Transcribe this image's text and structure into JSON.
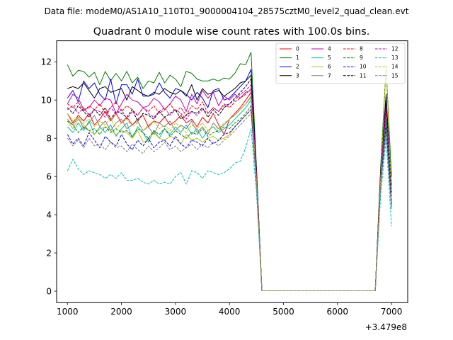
{
  "figure": {
    "suptitle": "Data file: modeM0/AS1A10_110T01_9000004104_28575cztM0_level2_quad_clean.evt"
  },
  "chart_data": {
    "type": "line",
    "title": "Quadrant 0 module wise count rates with 100.0s bins.",
    "xlabel": "",
    "ylabel": "",
    "x_offset_label": "+3.479e8",
    "xlim": [
      800,
      7300
    ],
    "ylim": [
      -0.6,
      13.1
    ],
    "xticks": [
      1000,
      2000,
      3000,
      4000,
      5000,
      6000,
      7000
    ],
    "xtick_labels": [
      "1000",
      "2000",
      "3000",
      "4000",
      "5000",
      "6000",
      "7000"
    ],
    "yticks": [
      0,
      2,
      4,
      6,
      8,
      10,
      12
    ],
    "ytick_labels": [
      "0",
      "2",
      "4",
      "6",
      "8",
      "10",
      "12"
    ],
    "grid": false,
    "legend_position": "top-right",
    "legend_columns": 4,
    "x": [
      1000,
      1100,
      1200,
      1300,
      1400,
      1500,
      1600,
      1700,
      1800,
      1900,
      2000,
      2100,
      2200,
      2300,
      2400,
      2500,
      2600,
      2700,
      2800,
      2900,
      3000,
      3100,
      3200,
      3300,
      3400,
      3500,
      3600,
      3700,
      3800,
      3900,
      4000,
      4100,
      4200,
      4300,
      4400,
      4500,
      4600,
      4700,
      4800,
      4900,
      5000,
      5100,
      5200,
      5300,
      5400,
      5500,
      5600,
      5700,
      5800,
      5900,
      6000,
      6100,
      6200,
      6300,
      6400,
      6500,
      6600,
      6700,
      6800,
      6900,
      7000
    ],
    "series": [
      {
        "name": "0",
        "color": "#ff0000",
        "dash": "solid",
        "values": [
          9.3,
          8.8,
          9.2,
          8.9,
          9.3,
          8.7,
          9.0,
          9.4,
          8.9,
          9.3,
          8.8,
          9.1,
          8.7,
          9.0,
          9.2,
          8.6,
          8.9,
          8.8,
          9.1,
          8.7,
          8.9,
          9.2,
          8.8,
          9.0,
          8.6,
          9.1,
          8.8,
          9.3,
          8.7,
          8.2,
          9.0,
          9.3,
          9.6,
          10.0,
          10.4,
          6.0,
          0.02,
          0.02,
          0.02,
          0.02,
          0.02,
          0.02,
          0.02,
          0.02,
          0.02,
          0.02,
          0.02,
          0.02,
          0.02,
          0.02,
          0.02,
          0.02,
          0.02,
          0.02,
          0.02,
          0.02,
          0.02,
          0.02,
          6.0,
          9.5,
          5.5
        ]
      },
      {
        "name": "1",
        "color": "#008000",
        "dash": "solid",
        "values": [
          11.85,
          11.25,
          11.55,
          11.5,
          11.2,
          11.45,
          10.8,
          11.5,
          11.0,
          11.4,
          11.0,
          11.5,
          10.9,
          11.2,
          10.6,
          11.0,
          10.9,
          11.45,
          10.9,
          11.3,
          11.1,
          10.7,
          11.5,
          11.4,
          11.1,
          11.0,
          11.0,
          11.1,
          11.0,
          11.15,
          11.1,
          11.4,
          11.9,
          11.85,
          12.5,
          6.5,
          0.02,
          0.02,
          0.02,
          0.02,
          0.02,
          0.02,
          0.02,
          0.02,
          0.02,
          0.02,
          0.02,
          0.02,
          0.02,
          0.02,
          0.02,
          0.02,
          0.02,
          0.02,
          0.02,
          0.02,
          0.02,
          0.02,
          6.5,
          11.7,
          6.0
        ]
      },
      {
        "name": "2",
        "color": "#0000ff",
        "dash": "solid",
        "values": [
          10.1,
          10.5,
          9.9,
          11.0,
          10.6,
          10.9,
          10.3,
          10.0,
          11.1,
          9.8,
          10.8,
          10.8,
          10.3,
          11.1,
          10.2,
          10.2,
          10.3,
          10.9,
          10.4,
          10.1,
          10.6,
          10.5,
          10.3,
          10.0,
          10.4,
          10.1,
          9.6,
          10.5,
          10.6,
          10.0,
          10.1,
          10.4,
          10.7,
          11.0,
          11.6,
          6.3,
          0.02,
          0.02,
          0.02,
          0.02,
          0.02,
          0.02,
          0.02,
          0.02,
          0.02,
          0.02,
          0.02,
          0.02,
          0.02,
          0.02,
          0.02,
          0.02,
          0.02,
          0.02,
          0.02,
          0.02,
          0.02,
          0.02,
          6.2,
          10.0,
          5.5
        ]
      },
      {
        "name": "3",
        "color": "#000000",
        "dash": "solid",
        "values": [
          10.6,
          10.7,
          10.6,
          10.9,
          10.5,
          10.1,
          10.6,
          10.7,
          10.4,
          10.5,
          10.6,
          10.0,
          10.7,
          10.5,
          10.3,
          10.2,
          10.4,
          10.3,
          10.6,
          10.4,
          10.3,
          10.5,
          10.2,
          10.8,
          10.0,
          10.6,
          10.3,
          10.4,
          10.5,
          10.2,
          10.4,
          10.6,
          10.9,
          11.0,
          11.3,
          6.4,
          0.02,
          0.02,
          0.02,
          0.02,
          0.02,
          0.02,
          0.02,
          0.02,
          0.02,
          0.02,
          0.02,
          0.02,
          0.02,
          0.02,
          0.02,
          0.02,
          0.02,
          0.02,
          0.02,
          0.02,
          0.02,
          0.02,
          6.3,
          10.3,
          5.0
        ]
      },
      {
        "name": "4",
        "color": "#bf00bf",
        "dash": "solid",
        "values": [
          9.8,
          10.3,
          10.1,
          9.5,
          9.6,
          10.0,
          9.7,
          10.1,
          10.0,
          9.3,
          9.8,
          10.3,
          10.0,
          9.9,
          9.6,
          9.7,
          10.1,
          9.9,
          9.5,
          9.8,
          10.2,
          10.0,
          9.4,
          10.3,
          9.8,
          10.5,
          10.1,
          10.4,
          9.7,
          10.2,
          10.0,
          10.3,
          10.1,
          10.4,
          10.5,
          6.1,
          0.02,
          0.02,
          0.02,
          0.02,
          0.02,
          0.02,
          0.02,
          0.02,
          0.02,
          0.02,
          0.02,
          0.02,
          0.02,
          0.02,
          0.02,
          0.02,
          0.02,
          0.02,
          0.02,
          0.02,
          0.02,
          0.02,
          6.0,
          9.4,
          5.2
        ]
      },
      {
        "name": "5",
        "color": "#00bfbf",
        "dash": "solid",
        "values": [
          8.6,
          8.3,
          8.8,
          8.4,
          8.9,
          8.2,
          8.6,
          8.3,
          8.7,
          8.1,
          8.5,
          8.8,
          8.0,
          8.6,
          8.3,
          7.8,
          8.4,
          8.0,
          8.5,
          8.2,
          8.6,
          8.3,
          8.7,
          8.2,
          8.5,
          8.0,
          8.4,
          8.6,
          8.3,
          8.5,
          8.7,
          9.0,
          9.3,
          9.6,
          10.0,
          5.9,
          0.02,
          0.02,
          0.02,
          0.02,
          0.02,
          0.02,
          0.02,
          0.02,
          0.02,
          0.02,
          0.02,
          0.02,
          0.02,
          0.02,
          0.02,
          0.02,
          0.02,
          0.02,
          0.02,
          0.02,
          0.02,
          0.02,
          5.8,
          9.0,
          4.6
        ]
      },
      {
        "name": "6",
        "color": "#bfbf00",
        "dash": "solid",
        "values": [
          8.9,
          8.5,
          9.0,
          8.7,
          8.4,
          8.2,
          8.5,
          8.6,
          8.4,
          8.2,
          8.4,
          8.3,
          8.0,
          8.4,
          7.8,
          7.9,
          8.3,
          8.0,
          7.9,
          8.1,
          8.0,
          7.7,
          8.2,
          7.9,
          8.0,
          7.8,
          8.0,
          8.1,
          7.9,
          8.0,
          8.2,
          8.6,
          8.9,
          9.2,
          9.5,
          5.7,
          0.02,
          0.02,
          0.02,
          0.02,
          0.02,
          0.02,
          0.02,
          0.02,
          0.02,
          0.02,
          0.02,
          0.02,
          0.02,
          0.02,
          0.02,
          0.02,
          0.02,
          0.02,
          0.02,
          0.02,
          0.02,
          0.02,
          5.6,
          8.5,
          4.4
        ]
      },
      {
        "name": "7",
        "color": "#808080",
        "dash": "solid",
        "values": [
          9.0,
          8.7,
          9.1,
          8.5,
          8.8,
          9.2,
          8.6,
          8.9,
          8.4,
          8.8,
          9.0,
          8.5,
          8.7,
          8.9,
          8.4,
          8.6,
          8.2,
          8.8,
          8.6,
          8.9,
          8.4,
          8.7,
          8.5,
          8.9,
          8.3,
          8.6,
          8.2,
          8.8,
          8.5,
          8.7,
          9.0,
          9.2,
          9.5,
          9.8,
          10.2,
          5.8,
          0.02,
          0.02,
          0.02,
          0.02,
          0.02,
          0.02,
          0.02,
          0.02,
          0.02,
          0.02,
          0.02,
          0.02,
          0.02,
          0.02,
          0.02,
          0.02,
          0.02,
          0.02,
          0.02,
          0.02,
          0.02,
          0.02,
          5.7,
          8.8,
          4.5
        ]
      },
      {
        "name": "8",
        "color": "#ff0000",
        "dash": "dashed",
        "values": [
          9.8,
          9.6,
          9.9,
          9.4,
          9.7,
          9.5,
          9.8,
          9.3,
          9.6,
          9.9,
          9.4,
          9.7,
          9.5,
          9.2,
          9.6,
          9.4,
          9.7,
          9.3,
          9.5,
          9.8,
          9.4,
          9.6,
          9.2,
          9.7,
          9.5,
          9.9,
          9.3,
          9.6,
          9.4,
          9.8,
          9.6,
          9.9,
          10.1,
          10.3,
          10.6,
          6.2,
          0.02,
          0.02,
          0.02,
          0.02,
          0.02,
          0.02,
          0.02,
          0.02,
          0.02,
          0.02,
          0.02,
          0.02,
          0.02,
          0.02,
          0.02,
          0.02,
          0.02,
          0.02,
          0.02,
          0.02,
          0.02,
          0.02,
          6.1,
          9.6,
          5.0
        ]
      },
      {
        "name": "9",
        "color": "#008000",
        "dash": "dashed",
        "values": [
          8.9,
          8.7,
          8.3,
          8.6,
          8.4,
          8.5,
          8.2,
          8.6,
          8.3,
          8.5,
          8.3,
          8.4,
          8.1,
          8.5,
          8.3,
          8.0,
          8.4,
          8.2,
          8.5,
          8.1,
          8.4,
          8.2,
          8.0,
          8.3,
          8.2,
          8.5,
          8.1,
          8.3,
          8.4,
          8.6,
          8.5,
          8.8,
          9.0,
          9.3,
          9.7,
          5.8,
          0.02,
          0.02,
          0.02,
          0.02,
          0.02,
          0.02,
          0.02,
          0.02,
          0.02,
          0.02,
          0.02,
          0.02,
          0.02,
          0.02,
          0.02,
          0.02,
          0.02,
          0.02,
          0.02,
          0.02,
          0.02,
          0.02,
          5.8,
          8.9,
          4.6
        ]
      },
      {
        "name": "10",
        "color": "#0000ff",
        "dash": "dashed",
        "values": [
          8.2,
          7.7,
          8.0,
          7.6,
          8.3,
          7.9,
          7.5,
          8.1,
          7.8,
          7.6,
          8.2,
          7.7,
          7.4,
          7.9,
          7.6,
          8.0,
          7.5,
          7.8,
          7.9,
          7.6,
          8.1,
          7.7,
          7.5,
          7.9,
          7.8,
          7.6,
          8.0,
          7.7,
          7.9,
          8.2,
          8.3,
          8.6,
          8.9,
          9.2,
          9.5,
          5.7,
          0.02,
          0.02,
          0.02,
          0.02,
          0.02,
          0.02,
          0.02,
          0.02,
          0.02,
          0.02,
          0.02,
          0.02,
          0.02,
          0.02,
          0.02,
          0.02,
          0.02,
          0.02,
          0.02,
          0.02,
          0.02,
          0.02,
          5.6,
          8.6,
          4.4
        ]
      },
      {
        "name": "11",
        "color": "#000000",
        "dash": "dashed",
        "values": [
          9.6,
          9.3,
          9.7,
          9.4,
          9.1,
          9.5,
          9.2,
          9.6,
          9.0,
          9.4,
          9.3,
          9.1,
          9.5,
          8.9,
          9.3,
          9.2,
          9.0,
          9.4,
          9.1,
          9.3,
          9.5,
          9.0,
          9.2,
          9.4,
          9.3,
          9.6,
          9.1,
          9.5,
          9.2,
          9.6,
          9.8,
          10.1,
          10.4,
          10.7,
          11.1,
          6.4,
          0.02,
          0.02,
          0.02,
          0.02,
          0.02,
          0.02,
          0.02,
          0.02,
          0.02,
          0.02,
          0.02,
          0.02,
          0.02,
          0.02,
          0.02,
          0.02,
          0.02,
          0.02,
          0.02,
          0.02,
          0.02,
          0.02,
          6.3,
          9.8,
          5.1
        ]
      },
      {
        "name": "12",
        "color": "#bf00bf",
        "dash": "dashed",
        "values": [
          9.5,
          9.7,
          9.3,
          9.6,
          9.2,
          9.5,
          9.4,
          9.1,
          9.6,
          9.3,
          9.5,
          9.0,
          9.4,
          9.2,
          9.6,
          9.3,
          9.1,
          9.4,
          9.6,
          9.2,
          9.5,
          9.3,
          9.0,
          9.4,
          9.2,
          9.5,
          9.3,
          9.6,
          9.4,
          9.7,
          9.8,
          10.0,
          10.3,
          10.5,
          10.8,
          6.2,
          0.02,
          0.02,
          0.02,
          0.02,
          0.02,
          0.02,
          0.02,
          0.02,
          0.02,
          0.02,
          0.02,
          0.02,
          0.02,
          0.02,
          0.02,
          0.02,
          0.02,
          0.02,
          0.02,
          0.02,
          0.02,
          0.02,
          6.1,
          9.7,
          5.2
        ]
      },
      {
        "name": "13",
        "color": "#00bfbf",
        "dash": "dashed",
        "values": [
          6.3,
          6.9,
          6.4,
          6.1,
          6.3,
          6.2,
          6.1,
          5.9,
          6.1,
          5.9,
          6.2,
          5.8,
          5.8,
          5.9,
          5.7,
          5.6,
          5.8,
          5.6,
          5.7,
          5.6,
          6.0,
          6.2,
          5.6,
          6.3,
          6.2,
          5.9,
          6.3,
          6.2,
          6.1,
          6.2,
          6.4,
          6.7,
          6.8,
          7.5,
          8.5,
          5.2,
          0.02,
          0.02,
          0.02,
          0.02,
          0.02,
          0.02,
          0.02,
          0.02,
          0.02,
          0.02,
          0.02,
          0.02,
          0.02,
          0.02,
          0.02,
          0.02,
          0.02,
          0.02,
          0.02,
          0.02,
          0.02,
          0.02,
          5.0,
          8.0,
          3.4
        ]
      },
      {
        "name": "14",
        "color": "#bfbf00",
        "dash": "dashed",
        "values": [
          9.3,
          8.9,
          9.1,
          8.8,
          9.0,
          8.6,
          8.9,
          8.7,
          9.1,
          8.5,
          8.8,
          9.0,
          8.6,
          8.8,
          8.4,
          8.7,
          8.9,
          8.5,
          8.7,
          8.4,
          8.8,
          8.6,
          8.3,
          8.7,
          8.5,
          8.8,
          8.4,
          8.6,
          8.5,
          8.8,
          9.0,
          9.2,
          9.5,
          9.8,
          10.1,
          5.9,
          0.02,
          0.02,
          0.02,
          0.02,
          0.02,
          0.02,
          0.02,
          0.02,
          0.02,
          0.02,
          0.02,
          0.02,
          0.02,
          0.02,
          0.02,
          0.02,
          0.02,
          0.02,
          0.02,
          0.02,
          0.02,
          0.02,
          5.9,
          11.8,
          5.0
        ]
      },
      {
        "name": "15",
        "color": "#808080",
        "dash": "dashed",
        "values": [
          8.0,
          7.6,
          7.9,
          7.5,
          8.0,
          7.6,
          7.7,
          7.4,
          7.8,
          7.5,
          7.6,
          7.3,
          7.7,
          7.4,
          7.2,
          7.6,
          7.3,
          7.5,
          7.8,
          7.4,
          7.6,
          7.3,
          7.5,
          7.7,
          7.4,
          7.7,
          7.5,
          7.8,
          7.6,
          7.9,
          8.1,
          8.4,
          8.7,
          9.0,
          9.3,
          5.6,
          0.02,
          0.02,
          0.02,
          0.02,
          0.02,
          0.02,
          0.02,
          0.02,
          0.02,
          0.02,
          0.02,
          0.02,
          0.02,
          0.02,
          0.02,
          0.02,
          0.02,
          0.02,
          0.02,
          0.02,
          0.02,
          0.02,
          5.5,
          8.4,
          4.3
        ]
      }
    ]
  }
}
